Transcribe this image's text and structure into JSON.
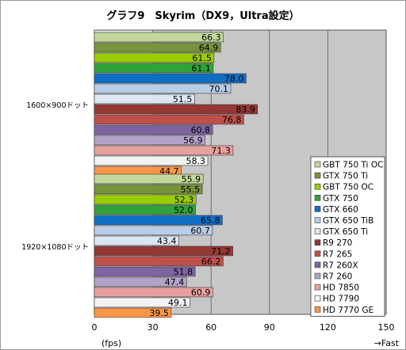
{
  "chart_data": {
    "type": "bar",
    "orientation": "horizontal",
    "title": "グラフ9　Skyrim（DX9，Ultra設定）",
    "xlabel": "(fps)",
    "x_end_label": "→Fast",
    "xlim": [
      0,
      150
    ],
    "xticks": [
      0,
      30,
      60,
      90,
      120,
      150
    ],
    "grid": true,
    "legend_position": "bottom-right",
    "groups": [
      "1600×900ドット",
      "1920×1080ドット"
    ],
    "series": [
      {
        "name": "GBT 750 Ti OC",
        "color": "#c4d79b",
        "values": [
          66.3,
          55.9
        ]
      },
      {
        "name": "GTX 750 Ti",
        "color": "#77933c",
        "values": [
          64.9,
          55.5
        ]
      },
      {
        "name": "GBT 750 OC",
        "color": "#9acd00",
        "values": [
          61.5,
          52.3
        ]
      },
      {
        "name": "GTX 750",
        "color": "#2fa33a",
        "values": [
          61.1,
          52.0
        ]
      },
      {
        "name": "GTX 660",
        "color": "#0f6fc6",
        "values": [
          78.0,
          65.8
        ]
      },
      {
        "name": "GTX 650 TiB",
        "color": "#b9cde5",
        "values": [
          70.1,
          60.7
        ]
      },
      {
        "name": "GTX 650 Ti",
        "color": "#dce6f2",
        "values": [
          51.5,
          43.4
        ]
      },
      {
        "name": "R9 270",
        "color": "#953735",
        "values": [
          83.9,
          71.2
        ]
      },
      {
        "name": "R7 265",
        "color": "#c0504d",
        "values": [
          76.8,
          66.2
        ]
      },
      {
        "name": "R7 260X",
        "color": "#8064a2",
        "values": [
          60.8,
          51.8
        ]
      },
      {
        "name": "R7 260",
        "color": "#b3a2c7",
        "values": [
          56.9,
          47.4
        ]
      },
      {
        "name": "HD 7850",
        "color": "#e6a19f",
        "values": [
          71.3,
          60.9
        ]
      },
      {
        "name": "HD 7790",
        "color": "#f2f2f2",
        "values": [
          58.3,
          49.1
        ]
      },
      {
        "name": "HD 7770 GE",
        "color": "#f79646",
        "values": [
          44.7,
          39.5
        ]
      }
    ]
  }
}
